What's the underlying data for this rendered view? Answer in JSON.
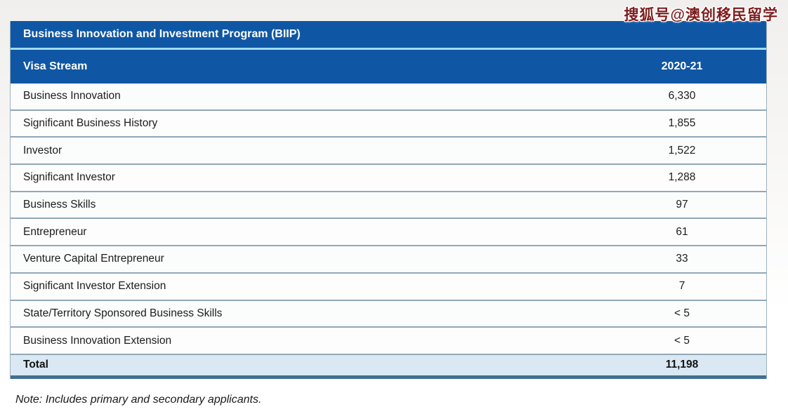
{
  "watermark": "搜狐号@澳创移民留学",
  "table": {
    "title": "Business Innovation and Investment Program (BIIP)",
    "header": {
      "label": "Visa Stream",
      "year": "2020-21"
    },
    "rows": [
      {
        "label": "Business Innovation",
        "value": "6,330"
      },
      {
        "label": "Significant Business History",
        "value": "1,855"
      },
      {
        "label": "Investor",
        "value": "1,522"
      },
      {
        "label": "Significant Investor",
        "value": "1,288"
      },
      {
        "label": "Business Skills",
        "value": "97"
      },
      {
        "label": "Entrepreneur",
        "value": "61"
      },
      {
        "label": "Venture Capital Entrepreneur",
        "value": "33"
      },
      {
        "label": "Significant Investor Extension",
        "value": "7"
      },
      {
        "label": "State/Territory Sponsored Business Skills",
        "value": "< 5"
      },
      {
        "label": "Business Innovation Extension",
        "value": "< 5"
      }
    ],
    "total": {
      "label": "Total",
      "value": "11,198"
    }
  },
  "note": "Note: Includes primary and secondary applicants.",
  "colors": {
    "header_blue": "#0f57a4",
    "header_separator_blue": "#a3dbee",
    "row_border": "#91a8b8",
    "total_row_background": "#d9e8f3",
    "total_bottom_border": "#3e7092",
    "watermark_red": "#7e1d1d"
  },
  "chart_data": {
    "type": "table",
    "title": "Business Innovation and Investment Program (BIIP)",
    "columns": [
      "Visa Stream",
      "2020-21"
    ],
    "rows": [
      [
        "Business Innovation",
        "6,330"
      ],
      [
        "Significant Business History",
        "1,855"
      ],
      [
        "Investor",
        "1,522"
      ],
      [
        "Significant Investor",
        "1,288"
      ],
      [
        "Business Skills",
        "97"
      ],
      [
        "Entrepreneur",
        "61"
      ],
      [
        "Venture Capital Entrepreneur",
        "33"
      ],
      [
        "Significant Investor Extension",
        "7"
      ],
      [
        "State/Territory Sponsored Business Skills",
        "< 5"
      ],
      [
        "Business Innovation Extension",
        "< 5"
      ],
      [
        "Total",
        "11,198"
      ]
    ],
    "note": "Note: Includes primary and secondary applicants."
  }
}
